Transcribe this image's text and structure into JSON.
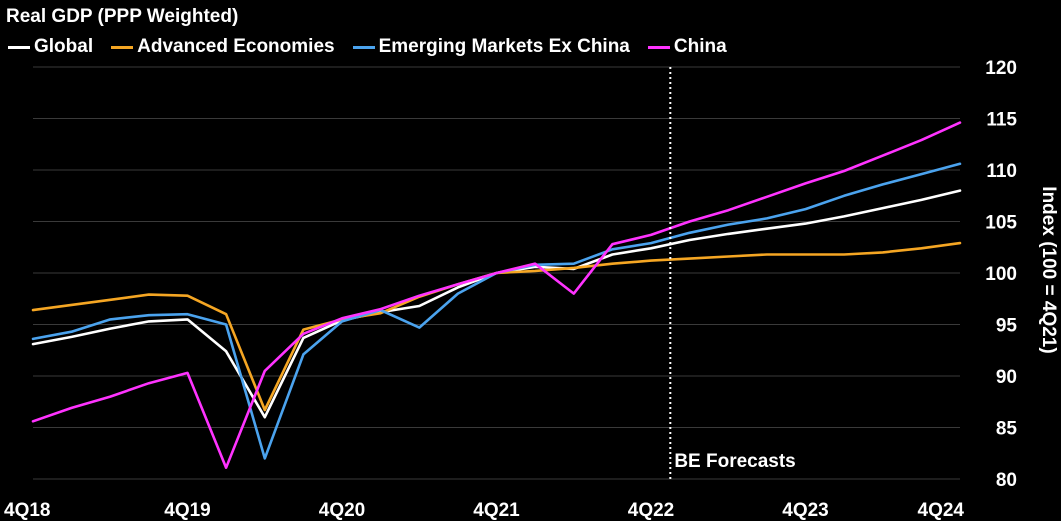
{
  "chart_data": {
    "type": "line",
    "title": "Real GDP (PPP Weighted)",
    "ylabel": "Index (100 = 4Q21)",
    "xlabel": "",
    "ylim": [
      80,
      120
    ],
    "yticks": [
      80,
      85,
      90,
      95,
      100,
      105,
      110,
      115,
      120
    ],
    "x": [
      "4Q18",
      "1Q19",
      "2Q19",
      "3Q19",
      "4Q19",
      "1Q20",
      "2Q20",
      "3Q20",
      "4Q20",
      "1Q21",
      "2Q21",
      "3Q21",
      "4Q21",
      "1Q22",
      "2Q22",
      "3Q22",
      "4Q22",
      "1Q23",
      "2Q23",
      "3Q23",
      "4Q23",
      "1Q24",
      "2Q24",
      "3Q24",
      "4Q24"
    ],
    "xtick_labels": [
      "4Q18",
      "4Q19",
      "4Q20",
      "4Q21",
      "4Q22",
      "4Q23",
      "4Q24"
    ],
    "forecast_start": 16.5,
    "annotation": "BE Forecasts",
    "grid": true,
    "legend_position": "top",
    "series": [
      {
        "name": "Global",
        "color": "#ffffff",
        "values": [
          93.1,
          93.8,
          94.6,
          95.3,
          95.5,
          92.4,
          86.0,
          93.7,
          95.4,
          96.2,
          96.8,
          98.6,
          100.0,
          100.6,
          100.4,
          101.8,
          102.4,
          103.2,
          103.8,
          104.3,
          104.8,
          105.5,
          106.3,
          107.1,
          108.0
        ]
      },
      {
        "name": "Advanced Economies",
        "color": "#f5a623",
        "values": [
          96.4,
          96.9,
          97.4,
          97.9,
          97.8,
          96.0,
          86.7,
          94.5,
          95.5,
          96.1,
          97.7,
          98.9,
          100.0,
          100.2,
          100.5,
          100.9,
          101.2,
          101.4,
          101.6,
          101.8,
          101.8,
          101.8,
          102.0,
          102.4,
          102.9
        ]
      },
      {
        "name": "Emerging Markets Ex China",
        "color": "#4ba3ee",
        "values": [
          93.6,
          94.3,
          95.5,
          95.9,
          96.0,
          95.0,
          82.0,
          92.1,
          95.3,
          96.4,
          94.7,
          98.0,
          100.0,
          100.8,
          100.9,
          102.3,
          102.9,
          103.9,
          104.7,
          105.3,
          106.2,
          107.5,
          108.6,
          109.6,
          110.6
        ]
      },
      {
        "name": "China",
        "color": "#ff33ff",
        "values": [
          85.6,
          86.9,
          88.0,
          89.3,
          90.3,
          81.1,
          90.5,
          94.1,
          95.6,
          96.5,
          97.8,
          98.9,
          100.0,
          100.9,
          98.0,
          102.8,
          103.7,
          105.0,
          106.1,
          107.4,
          108.7,
          109.9,
          111.4,
          112.9,
          114.6
        ]
      }
    ]
  }
}
